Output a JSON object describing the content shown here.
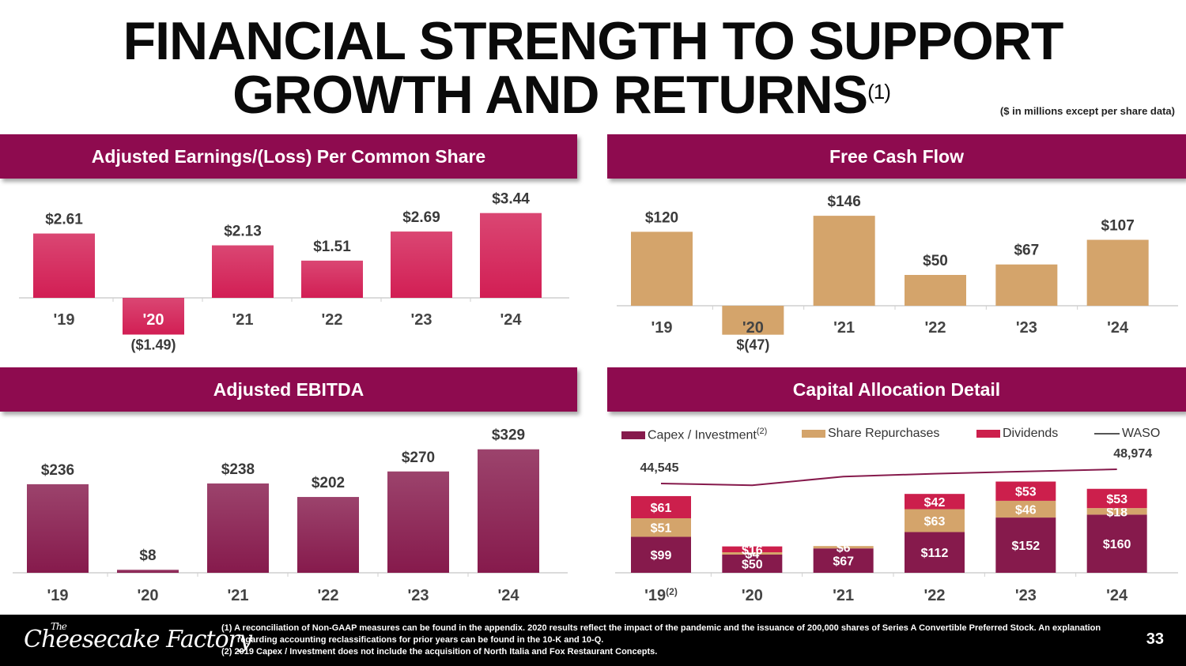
{
  "title": {
    "line1": "FINANCIAL STRENGTH TO SUPPORT",
    "line2": "GROWTH AND RETURNS",
    "footnote_mark": "(1)"
  },
  "units_note": "($ in millions except per share data)",
  "panels": {
    "eps": "Adjusted Earnings/(Loss) Per Common Share",
    "fcf": "Free Cash Flow",
    "ebitda": "Adjusted EBITDA",
    "capital": "Capital Allocation Detail"
  },
  "legend": {
    "capex": "Capex / Investment",
    "capex_note": "(2)",
    "repurchases": "Share Repurchases",
    "dividends": "Dividends",
    "waso": "WASO"
  },
  "colors": {
    "banner": "#8e0b4f",
    "eps_bar": "#d21e54",
    "fcf_bar": "#d4a46b",
    "ebitda_bar": "#861a4c",
    "capex": "#861a4c",
    "repurchases": "#d4a46b",
    "dividends": "#cc1f4c",
    "waso": "#861a4c"
  },
  "chart_data": [
    {
      "id": "eps",
      "type": "bar",
      "title": "Adjusted Earnings/(Loss) Per Common Share",
      "categories": [
        "'19",
        "'20",
        "'21",
        "'22",
        "'23",
        "'24"
      ],
      "values": [
        2.61,
        -1.49,
        2.13,
        1.51,
        2.69,
        3.44
      ],
      "labels": [
        "$2.61",
        "($1.49)",
        "$2.13",
        "$1.51",
        "$2.69",
        "$3.44"
      ]
    },
    {
      "id": "fcf",
      "type": "bar",
      "title": "Free Cash Flow",
      "categories": [
        "'19",
        "'20",
        "'21",
        "'22",
        "'23",
        "'24"
      ],
      "values": [
        120,
        -47,
        146,
        50,
        67,
        107
      ],
      "labels": [
        "$120",
        "$(47)",
        "$146",
        "$50",
        "$67",
        "$107"
      ]
    },
    {
      "id": "ebitda",
      "type": "bar",
      "title": "Adjusted EBITDA",
      "categories": [
        "'19",
        "'20",
        "'21",
        "'22",
        "'23",
        "'24"
      ],
      "values": [
        236,
        8,
        238,
        202,
        270,
        329
      ],
      "labels": [
        "$236",
        "$8",
        "$238",
        "$202",
        "$270",
        "$329"
      ]
    },
    {
      "id": "capital",
      "type": "bar",
      "stacked": true,
      "title": "Capital Allocation Detail",
      "categories": [
        "'19",
        "'20",
        "'21",
        "'22",
        "'23",
        "'24"
      ],
      "first_category_note": "(2)",
      "series": [
        {
          "name": "Capex / Investment",
          "key": "capex",
          "values": [
            99,
            50,
            67,
            112,
            152,
            160
          ]
        },
        {
          "name": "Share Repurchases",
          "key": "repurchases",
          "values": [
            51,
            4,
            6,
            63,
            46,
            18
          ]
        },
        {
          "name": "Dividends",
          "key": "dividends",
          "values": [
            61,
            16,
            0,
            42,
            53,
            53
          ]
        }
      ],
      "line": {
        "name": "WASO",
        "values": [
          44545,
          44000,
          46700,
          47600,
          48300,
          48974
        ],
        "labels": [
          "44,545",
          "",
          "",
          "",
          "",
          "48,974"
        ]
      }
    }
  ],
  "footer": {
    "logo_text": "Cheesecake Factory",
    "logo_small": "The",
    "note1": "(1)  A reconciliation of Non-GAAP measures can be found in the appendix. 2020 results reflect the impact of the pandemic and the issuance of 200,000 shares of Series A Convertible Preferred Stock. An explanation regarding accounting reclassifications for prior years can be found in the 10-K and 10-Q.",
    "note2": "(2)  2019 Capex / Investment does not include the acquisition of North Italia and Fox Restaurant Concepts.",
    "page": "33"
  }
}
